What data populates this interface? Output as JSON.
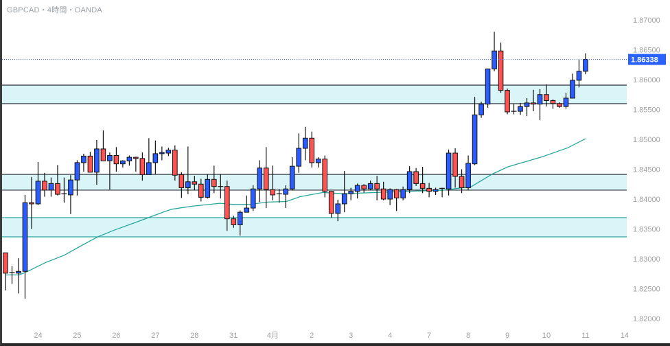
{
  "header": {
    "title": "GBPCAD・4時間・OANDA"
  },
  "colors": {
    "up": "#2b5cff",
    "down": "#ff5253",
    "outline": "#111111",
    "ma": "#26a69a",
    "zone_fill": "#d9f5f7",
    "zone_border": "#2a2e39",
    "price_label_bg": "#2962ff",
    "price_line": "#2962ff"
  },
  "chart_data": {
    "type": "candlestick",
    "title": "GBPCAD・4時間・OANDA",
    "symbol": "GBPCAD",
    "ylim": [
      1.82,
      1.87
    ],
    "y_ticks": [
      "1.82000",
      "1.82500",
      "1.83000",
      "1.83500",
      "1.84000",
      "1.84500",
      "1.85000",
      "1.85500",
      "1.86000",
      "1.86500",
      "1.87000"
    ],
    "y_tick_values": [
      1.82,
      1.825,
      1.83,
      1.835,
      1.84,
      1.845,
      1.85,
      1.855,
      1.86,
      1.865,
      1.87
    ],
    "x_ticks": [
      {
        "label": "24",
        "index": 5
      },
      {
        "label": "25",
        "index": 11
      },
      {
        "label": "26",
        "index": 17
      },
      {
        "label": "27",
        "index": 23
      },
      {
        "label": "28",
        "index": 29
      },
      {
        "label": "31",
        "index": 35
      },
      {
        "label": "4月",
        "index": 41
      },
      {
        "label": "2",
        "index": 47
      },
      {
        "label": "3",
        "index": 53
      },
      {
        "label": "4",
        "index": 59
      },
      {
        "label": "7",
        "index": 65
      },
      {
        "label": "8",
        "index": 71
      },
      {
        "label": "9",
        "index": 77
      },
      {
        "label": "10",
        "index": 83
      },
      {
        "label": "11",
        "index": 89
      },
      {
        "label": "14",
        "index": 95
      }
    ],
    "current_price": {
      "value": 1.86338,
      "label": "1.86338"
    },
    "zones": [
      {
        "top": 1.85908,
        "bottom": 1.85598,
        "border": "dark"
      },
      {
        "top": 1.84414,
        "bottom": 1.8415,
        "border": "dark"
      },
      {
        "top": 1.8369,
        "bottom": 1.83368,
        "border": "teal"
      }
    ],
    "ohlc_fields": [
      "open",
      "high",
      "low",
      "close"
    ],
    "candles": [
      [
        1.831,
        1.831,
        1.8247,
        1.8276
      ],
      [
        1.8276,
        1.8288,
        1.8258,
        1.8277
      ],
      [
        1.8276,
        1.8301,
        1.8242,
        1.8279
      ],
      [
        1.8279,
        1.8407,
        1.8233,
        1.8394
      ],
      [
        1.8394,
        1.8437,
        1.835,
        1.8392
      ],
      [
        1.8392,
        1.8462,
        1.839,
        1.843
      ],
      [
        1.843,
        1.8444,
        1.8404,
        1.8415
      ],
      [
        1.8415,
        1.8436,
        1.8404,
        1.8426
      ],
      [
        1.8426,
        1.8457,
        1.8406,
        1.8408
      ],
      [
        1.8408,
        1.8436,
        1.8394,
        1.8409
      ],
      [
        1.8407,
        1.844,
        1.8375,
        1.8432
      ],
      [
        1.8432,
        1.8465,
        1.8406,
        1.8461
      ],
      [
        1.8461,
        1.8476,
        1.8446,
        1.8472
      ],
      [
        1.8472,
        1.8479,
        1.8445,
        1.8445
      ],
      [
        1.8445,
        1.8499,
        1.8424,
        1.8484
      ],
      [
        1.8484,
        1.8515,
        1.8464,
        1.8464
      ],
      [
        1.8464,
        1.8478,
        1.8416,
        1.8473
      ],
      [
        1.8473,
        1.8487,
        1.8446,
        1.8459
      ],
      [
        1.8459,
        1.8465,
        1.8453,
        1.8464
      ],
      [
        1.8464,
        1.8473,
        1.8456,
        1.847
      ],
      [
        1.847,
        1.8471,
        1.8446,
        1.8468
      ],
      [
        1.8468,
        1.8478,
        1.8431,
        1.8441
      ],
      [
        1.8441,
        1.8502,
        1.8442,
        1.8461
      ],
      [
        1.8461,
        1.8498,
        1.8442,
        1.8476
      ],
      [
        1.8476,
        1.8488,
        1.8465,
        1.8478
      ],
      [
        1.8477,
        1.8486,
        1.8472,
        1.8482
      ],
      [
        1.8482,
        1.849,
        1.8431,
        1.844
      ],
      [
        1.8441,
        1.8445,
        1.8402,
        1.8419
      ],
      [
        1.8419,
        1.8488,
        1.8408,
        1.8429
      ],
      [
        1.8429,
        1.8439,
        1.8415,
        1.8425
      ],
      [
        1.8425,
        1.8434,
        1.8396,
        1.8403
      ],
      [
        1.8403,
        1.8441,
        1.8401,
        1.8433
      ],
      [
        1.8433,
        1.8456,
        1.841,
        1.8421
      ],
      [
        1.8421,
        1.8442,
        1.8401,
        1.8421
      ],
      [
        1.8421,
        1.8431,
        1.8347,
        1.8367
      ],
      [
        1.8367,
        1.8372,
        1.8352,
        1.8357
      ],
      [
        1.8357,
        1.8381,
        1.8339,
        1.8378
      ],
      [
        1.8378,
        1.8406,
        1.8378,
        1.8385
      ],
      [
        1.8385,
        1.8423,
        1.838,
        1.8417
      ],
      [
        1.8417,
        1.8465,
        1.8395,
        1.8452
      ],
      [
        1.8452,
        1.8487,
        1.8385,
        1.8416
      ],
      [
        1.8416,
        1.8456,
        1.8398,
        1.8407
      ],
      [
        1.8408,
        1.8417,
        1.8394,
        1.8409
      ],
      [
        1.8408,
        1.8423,
        1.8385,
        1.8417
      ],
      [
        1.8417,
        1.847,
        1.8415,
        1.8455
      ],
      [
        1.8455,
        1.851,
        1.8444,
        1.8485
      ],
      [
        1.8485,
        1.8521,
        1.8465,
        1.8502
      ],
      [
        1.8502,
        1.8513,
        1.8453,
        1.8461
      ],
      [
        1.8461,
        1.847,
        1.8453,
        1.8467
      ],
      [
        1.8467,
        1.8473,
        1.8403,
        1.8413
      ],
      [
        1.8413,
        1.8413,
        1.8369,
        1.8376
      ],
      [
        1.8376,
        1.8399,
        1.8363,
        1.8392
      ],
      [
        1.8392,
        1.8447,
        1.8378,
        1.8409
      ],
      [
        1.8409,
        1.8419,
        1.8398,
        1.8413
      ],
      [
        1.8413,
        1.8426,
        1.8401,
        1.8423
      ],
      [
        1.8423,
        1.8425,
        1.8411,
        1.8417
      ],
      [
        1.8417,
        1.8431,
        1.8415,
        1.8426
      ],
      [
        1.8426,
        1.8439,
        1.8398,
        1.8417
      ],
      [
        1.8417,
        1.8429,
        1.8398,
        1.84
      ],
      [
        1.84,
        1.8418,
        1.839,
        1.8416
      ],
      [
        1.8416,
        1.8417,
        1.838,
        1.8402
      ],
      [
        1.8402,
        1.8421,
        1.8398,
        1.8416
      ],
      [
        1.8416,
        1.8455,
        1.841,
        1.8446
      ],
      [
        1.8446,
        1.8452,
        1.8422,
        1.8426
      ],
      [
        1.8426,
        1.8454,
        1.841,
        1.8418
      ],
      [
        1.8418,
        1.8427,
        1.8403,
        1.8413
      ],
      [
        1.8413,
        1.8419,
        1.8407,
        1.8416
      ],
      [
        1.8417,
        1.8419,
        1.8403,
        1.8418
      ],
      [
        1.8417,
        1.8483,
        1.8406,
        1.8477
      ],
      [
        1.8477,
        1.8485,
        1.8419,
        1.8438
      ],
      [
        1.8438,
        1.845,
        1.841,
        1.8419
      ],
      [
        1.8419,
        1.8473,
        1.8415,
        1.846
      ],
      [
        1.8459,
        1.8571,
        1.8457,
        1.8541
      ],
      [
        1.8541,
        1.8563,
        1.8536,
        1.8559
      ],
      [
        1.8559,
        1.8618,
        1.8553,
        1.8618
      ],
      [
        1.8618,
        1.868,
        1.8614,
        1.8648
      ],
      [
        1.8648,
        1.8662,
        1.8578,
        1.8582
      ],
      [
        1.8582,
        1.8585,
        1.8542,
        1.8546
      ],
      [
        1.8546,
        1.8559,
        1.8542,
        1.8547
      ],
      [
        1.8547,
        1.8561,
        1.8541,
        1.8555
      ],
      [
        1.8555,
        1.8569,
        1.8539,
        1.8561
      ],
      [
        1.8561,
        1.8583,
        1.8547,
        1.8559
      ],
      [
        1.8559,
        1.8584,
        1.8532,
        1.8575
      ],
      [
        1.8575,
        1.8592,
        1.8555,
        1.8565
      ],
      [
        1.8565,
        1.8567,
        1.8551,
        1.856
      ],
      [
        1.856,
        1.8562,
        1.8553,
        1.8555
      ],
      [
        1.8555,
        1.8578,
        1.8551,
        1.8569
      ],
      [
        1.8569,
        1.861,
        1.8569,
        1.8599
      ],
      [
        1.8599,
        1.8634,
        1.8587,
        1.8614
      ],
      [
        1.8614,
        1.8644,
        1.8609,
        1.86338
      ]
    ],
    "moving_average": [
      [
        0,
        1.8273
      ],
      [
        2.1,
        1.8273
      ],
      [
        3.4,
        1.8279
      ],
      [
        6.2,
        1.8294
      ],
      [
        9,
        1.8306
      ],
      [
        11.8,
        1.8323
      ],
      [
        14.2,
        1.8337
      ],
      [
        16.7,
        1.8348
      ],
      [
        20.2,
        1.8362
      ],
      [
        24.4,
        1.8379
      ],
      [
        25.5,
        1.8383
      ],
      [
        28.6,
        1.8388
      ],
      [
        32.9,
        1.8393
      ],
      [
        35,
        1.8391
      ],
      [
        37.4,
        1.8391
      ],
      [
        40.2,
        1.8395
      ],
      [
        43.1,
        1.8396
      ],
      [
        45.2,
        1.8404
      ],
      [
        48.7,
        1.8411
      ],
      [
        51.8,
        1.8409
      ],
      [
        61.6,
        1.8413
      ],
      [
        67.3,
        1.8415
      ],
      [
        71.5,
        1.8421
      ],
      [
        74.7,
        1.8442
      ],
      [
        77.1,
        1.8454
      ],
      [
        82.4,
        1.8471
      ],
      [
        86.3,
        1.8486
      ],
      [
        89,
        1.8501
      ]
    ]
  }
}
